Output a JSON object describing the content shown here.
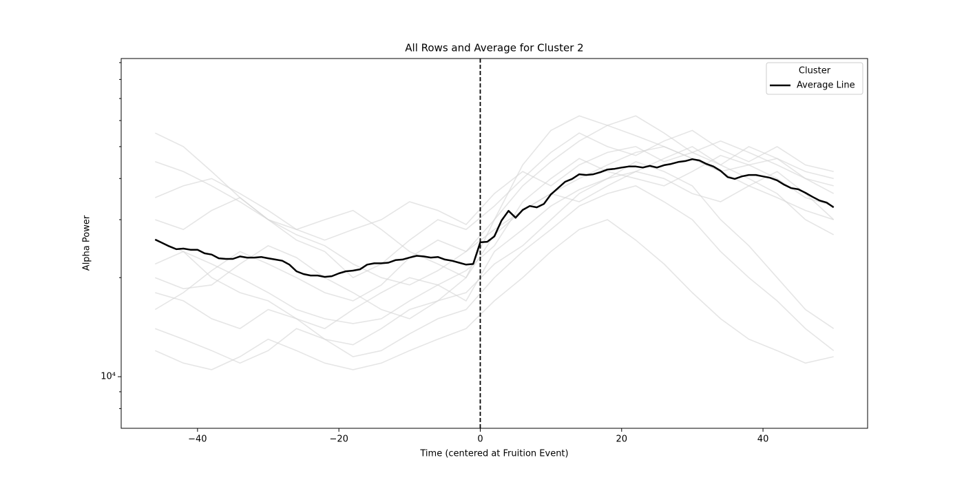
{
  "chart_data": {
    "type": "line",
    "title": "All Rows and Average for Cluster 2",
    "xlabel": "Time (centered at Fruition Event)",
    "ylabel": "Alpha Power",
    "yscale": "log",
    "xlim": [
      -50.8,
      54.8
    ],
    "ylim": [
      6970,
      92600
    ],
    "xticks": [
      {
        "value": -40,
        "label": "−40"
      },
      {
        "value": -20,
        "label": "−20"
      },
      0,
      20,
      40
    ],
    "yticks": [
      {
        "value": 10000,
        "label": "10⁴"
      }
    ],
    "yminor": [
      8000,
      9000,
      20000,
      30000,
      40000,
      50000,
      60000,
      70000,
      80000,
      90000
    ],
    "vline": 0,
    "legend": "upper right",
    "legend_title": "Cluster",
    "x": [
      -46,
      -45,
      -44,
      -43,
      -42,
      -41,
      -40,
      -39,
      -38,
      -37,
      -36,
      -35,
      -34,
      -33,
      -32,
      -31,
      -30,
      -29,
      -28,
      -27,
      -26,
      -25,
      -24,
      -23,
      -22,
      -21,
      -20,
      -19,
      -18,
      -17,
      -16,
      -15,
      -14,
      -13,
      -12,
      -11,
      -10,
      -9,
      -8,
      -7,
      -6,
      -5,
      -4,
      -3,
      -2,
      -1,
      0,
      1,
      2,
      3,
      4,
      5,
      6,
      7,
      8,
      9,
      10,
      11,
      12,
      13,
      14,
      15,
      16,
      17,
      18,
      19,
      20,
      21,
      22,
      23,
      24,
      25,
      26,
      27,
      28,
      29,
      30,
      31,
      32,
      33,
      34,
      35,
      36,
      37,
      38,
      39,
      40,
      41,
      42,
      43,
      44,
      45,
      46,
      47,
      48,
      49,
      50
    ],
    "series": [
      {
        "name": "Average Line",
        "color": "#000000",
        "values": [
          26100,
          25500,
          24900,
          24400,
          24500,
          24300,
          24300,
          23700,
          23500,
          22900,
          22800,
          22800,
          23200,
          23000,
          23000,
          23100,
          22900,
          22700,
          22500,
          21900,
          20900,
          20500,
          20300,
          20300,
          20100,
          20200,
          20600,
          20900,
          21000,
          21200,
          21900,
          22100,
          22100,
          22200,
          22600,
          22700,
          23000,
          23300,
          23200,
          23000,
          23100,
          22700,
          22500,
          22200,
          21900,
          22000,
          25600,
          25700,
          26700,
          29800,
          31900,
          30400,
          32100,
          33000,
          32700,
          33500,
          35800,
          37400,
          39100,
          39900,
          41200,
          41000,
          41200,
          41800,
          42600,
          42800,
          43200,
          43500,
          43500,
          43200,
          43700,
          43200,
          43900,
          44300,
          44900,
          45200,
          45800,
          45400,
          44300,
          43500,
          42200,
          40400,
          39900,
          40600,
          41000,
          41000,
          40600,
          40200,
          39500,
          38300,
          37400,
          37100,
          36200,
          35200,
          34300,
          33800,
          32700
        ]
      }
    ],
    "rows": {
      "color": "#d3d3d3",
      "x": [
        -46,
        -42,
        -38,
        -34,
        -30,
        -26,
        -22,
        -18,
        -14,
        -10,
        -6,
        -2,
        2,
        6,
        10,
        14,
        18,
        22,
        26,
        30,
        34,
        38,
        42,
        46,
        50
      ],
      "series": [
        {
          "values": [
            55000,
            50000,
            42000,
            35000,
            30000,
            27000,
            25000,
            22000,
            20000,
            19000,
            21000,
            24000,
            30000,
            38000,
            45000,
            52000,
            58000,
            62000,
            55000,
            48000,
            44000,
            50000,
            46000,
            40000,
            36000
          ]
        },
        {
          "values": [
            18000,
            17000,
            15000,
            14000,
            16000,
            15000,
            13000,
            12500,
            14000,
            16000,
            17000,
            18000,
            22000,
            25000,
            30000,
            36000,
            40000,
            45000,
            42000,
            38000,
            30000,
            25000,
            20000,
            16000,
            14000
          ]
        },
        {
          "values": [
            30000,
            28000,
            32000,
            35000,
            30000,
            26000,
            24000,
            20000,
            22000,
            26000,
            30000,
            28000,
            33000,
            40000,
            48000,
            55000,
            50000,
            47000,
            52000,
            56000,
            49000,
            45000,
            50000,
            44000,
            42000
          ]
        },
        {
          "values": [
            22000,
            24000,
            20000,
            18000,
            17000,
            15000,
            14000,
            16000,
            18000,
            20000,
            19000,
            17000,
            24000,
            28000,
            33000,
            37000,
            40000,
            42000,
            46000,
            50000,
            44000,
            40000,
            36000,
            30000,
            27000
          ]
        },
        {
          "values": [
            14000,
            13000,
            12000,
            11000,
            12000,
            14000,
            13000,
            11500,
            12000,
            13500,
            15000,
            16000,
            20000,
            24000,
            28000,
            33000,
            36000,
            38000,
            34000,
            30000,
            24000,
            20000,
            17000,
            14000,
            12000
          ]
        },
        {
          "values": [
            35000,
            38000,
            40000,
            36000,
            32000,
            28000,
            26000,
            28000,
            30000,
            34000,
            32000,
            29000,
            36000,
            42000,
            38000,
            44000,
            48000,
            50000,
            45000,
            48000,
            52000,
            48000,
            44000,
            40000,
            38000
          ]
        },
        {
          "values": [
            20000,
            18500,
            19000,
            22000,
            25000,
            23000,
            20000,
            18000,
            16000,
            15000,
            17000,
            20000,
            27000,
            32000,
            36000,
            40000,
            44000,
            48000,
            50000,
            46000,
            42000,
            38000,
            35000,
            32000,
            30000
          ]
        },
        {
          "values": [
            26000,
            24000,
            22000,
            20000,
            18000,
            16000,
            15000,
            14500,
            15000,
            17000,
            19000,
            21000,
            25000,
            34000,
            40000,
            46000,
            42000,
            40000,
            38000,
            42000,
            47000,
            44000,
            40000,
            35000,
            33000
          ]
        },
        {
          "values": [
            16000,
            18000,
            21000,
            24000,
            22000,
            20000,
            18000,
            17000,
            19000,
            23000,
            26000,
            24000,
            28000,
            32000,
            36000,
            34000,
            38000,
            42000,
            40000,
            36000,
            34000,
            38000,
            42000,
            36000,
            30000
          ]
        },
        {
          "values": [
            45000,
            42000,
            38000,
            34000,
            30000,
            28000,
            30000,
            32000,
            28000,
            24000,
            22000,
            20000,
            30000,
            44000,
            56000,
            62000,
            58000,
            54000,
            50000,
            46000,
            42000,
            44000,
            46000,
            42000,
            40000
          ]
        },
        {
          "values": [
            12000,
            11000,
            10500,
            11500,
            13000,
            12000,
            11000,
            10500,
            11000,
            12000,
            13000,
            14000,
            17000,
            20000,
            24000,
            28000,
            30000,
            26000,
            22000,
            18000,
            15000,
            13000,
            12000,
            11000,
            11500
          ]
        }
      ]
    }
  }
}
